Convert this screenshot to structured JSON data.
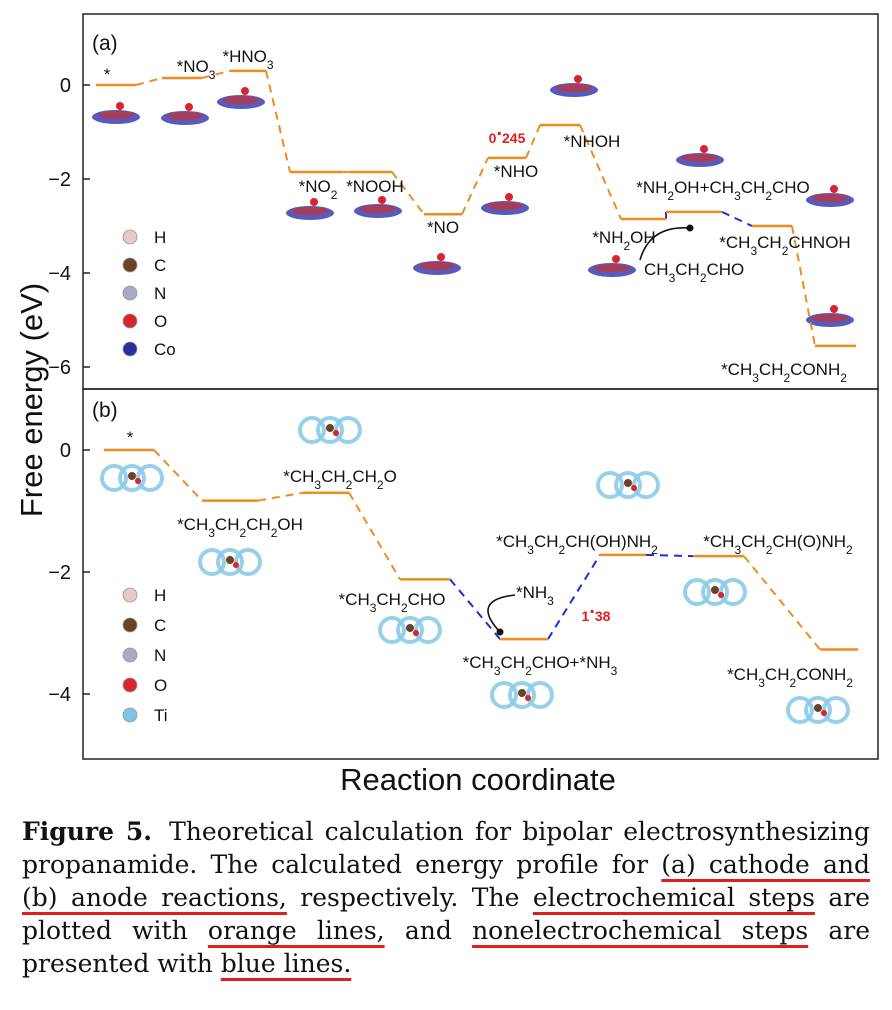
{
  "chart_data": [
    {
      "type": "line",
      "panel_label": "(a)",
      "ylim": [
        -6.5,
        1.5
      ],
      "yticks": [
        0,
        -2,
        -4,
        -6
      ],
      "energy_gap_label": "0.245",
      "states": [
        {
          "label": "*",
          "energy": 0.0,
          "step_type": "electrochemical"
        },
        {
          "label": "*NO3",
          "energy": 0.15,
          "step_type": "electrochemical"
        },
        {
          "label": "*HNO3",
          "energy": 0.3,
          "step_type": "electrochemical"
        },
        {
          "label": "*NO2",
          "energy": -1.85,
          "step_type": "electrochemical"
        },
        {
          "label": "*NOOH",
          "energy": -1.85,
          "step_type": "electrochemical"
        },
        {
          "label": "*NO",
          "energy": -2.75,
          "step_type": "electrochemical"
        },
        {
          "label": "*NHO",
          "energy": -1.55,
          "step_type": "electrochemical"
        },
        {
          "label": "*NHOH",
          "energy": -0.85,
          "step_type": "electrochemical"
        },
        {
          "label": "*NH2OH",
          "energy": -2.85,
          "step_type": "electrochemical"
        },
        {
          "label": "*NH2OH+CH3CH2CHO",
          "energy": -2.7,
          "step_type": "nonelectrochemical"
        },
        {
          "label": "*CH3CH2CHNOH",
          "energy": -3.0,
          "step_type": "nonelectrochemical"
        },
        {
          "label": "*CH3CH2CONH2",
          "energy": -5.55,
          "step_type": "electrochemical"
        }
      ],
      "arrow_label": "CH3CH2CHO",
      "legend": [
        "H",
        "C",
        "N",
        "O",
        "Co"
      ],
      "legend_colors": [
        "#e8c9c9",
        "#6b4226",
        "#a9a9c8",
        "#d8242a",
        "#2b2f9e"
      ]
    },
    {
      "type": "line",
      "panel_label": "(b)",
      "ylim": [
        -5,
        0.8
      ],
      "yticks": [
        0,
        -2,
        -4
      ],
      "energy_gap_label": "1.38",
      "states": [
        {
          "label": "*",
          "energy": 0.0,
          "step_type": "electrochemical"
        },
        {
          "label": "*CH3CH2CH2OH",
          "energy": -0.83,
          "step_type": "electrochemical"
        },
        {
          "label": "*CH3CH2CH2O",
          "energy": -0.7,
          "step_type": "electrochemical"
        },
        {
          "label": "*CH3CH2CHO",
          "energy": -2.12,
          "step_type": "electrochemical"
        },
        {
          "label": "*CH3CH2CHO+*NH3",
          "energy": -3.1,
          "step_type": "nonelectrochemical"
        },
        {
          "label": "*CH3CH2CH(OH)NH2",
          "energy": -1.72,
          "step_type": "nonelectrochemical"
        },
        {
          "label": "*CH3CH2CH(O)NH2",
          "energy": -1.74,
          "step_type": "nonelectrochemical"
        },
        {
          "label": "*CH3CH2CONH2",
          "energy": -3.27,
          "step_type": "electrochemical"
        }
      ],
      "arrow_label": "*NH3",
      "legend": [
        "H",
        "C",
        "N",
        "O",
        "Ti"
      ],
      "legend_colors": [
        "#e8c9c9",
        "#6b4226",
        "#a9a9c8",
        "#d8242a",
        "#7ec3e6"
      ]
    }
  ],
  "axes": {
    "ylabel": "Free energy (eV)",
    "xlabel": "Reaction coordinate"
  },
  "colors": {
    "electrochemical": "#f08c1e",
    "nonelectrochemical": "#1e2fd6",
    "gap_label": "#e01e1e"
  },
  "caption": {
    "label": "Figure 5.",
    "t1": "Theoretical calculation for bipolar electrosynthesizing propanamide. The calculated energy profile for",
    "h1": "(a) cathode and (b) anode reactions,",
    "t2": "respectively. The",
    "h2": "electrochemical steps",
    "t3": "are plotted with",
    "h3": "orange lines,",
    "t4": "and",
    "h4": "nonelectrochemical steps",
    "t5": "are presented with",
    "h5": "blue lines."
  }
}
